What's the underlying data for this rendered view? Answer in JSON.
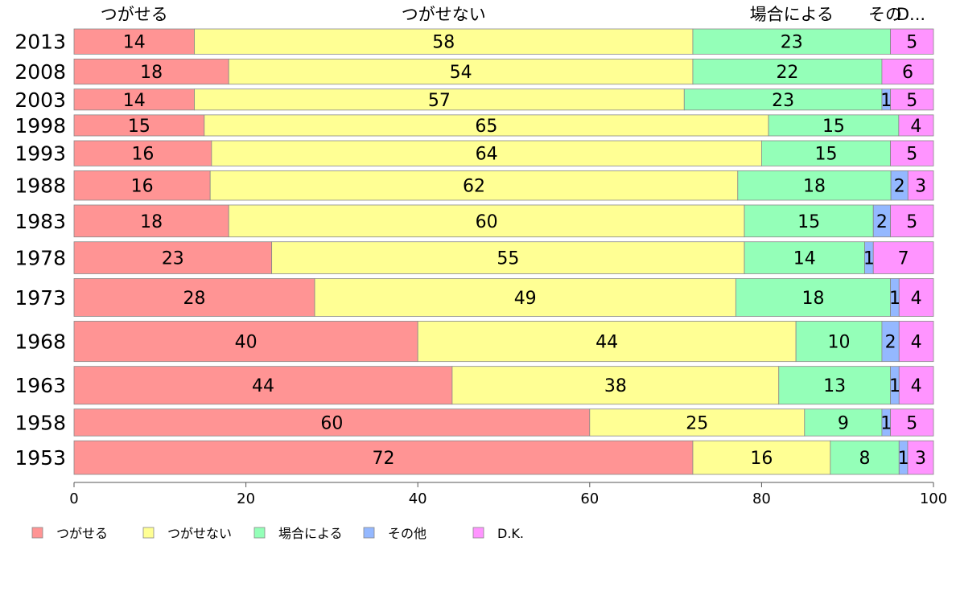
{
  "chart_data": {
    "type": "bar",
    "orientation": "horizontal",
    "stacked": true,
    "categories": [
      "2013",
      "2008",
      "2003",
      "1998",
      "1993",
      "1988",
      "1983",
      "1978",
      "1973",
      "1968",
      "1963",
      "1958",
      "1953"
    ],
    "category_weights": [
      30,
      30,
      25,
      25,
      30,
      35,
      38,
      38,
      45,
      48,
      45,
      32,
      40
    ],
    "series": [
      {
        "name": "つがせる",
        "color": "#ff9494",
        "values": [
          14,
          18,
          14,
          15,
          16,
          16,
          18,
          23,
          28,
          40,
          44,
          60,
          72
        ]
      },
      {
        "name": "つがせない",
        "color": "#ffff94",
        "values": [
          58,
          54,
          57,
          65,
          64,
          62,
          60,
          55,
          49,
          44,
          38,
          25,
          16
        ]
      },
      {
        "name": "場合による",
        "color": "#94ffb8",
        "values": [
          23,
          22,
          23,
          15,
          15,
          18,
          15,
          14,
          18,
          10,
          13,
          9,
          8
        ]
      },
      {
        "name": "その他",
        "color": "#94b8ff",
        "values": [
          0,
          0,
          1,
          0,
          0,
          2,
          2,
          1,
          1,
          2,
          1,
          1,
          1
        ]
      },
      {
        "name": "D.K.",
        "color": "#ff94ff",
        "values": [
          5,
          6,
          5,
          4,
          5,
          3,
          5,
          7,
          4,
          4,
          4,
          5,
          3
        ]
      }
    ],
    "data_labels": [
      [
        "14",
        "18",
        "14",
        "15",
        "16",
        "16",
        "18",
        "23",
        "28",
        "40",
        "44",
        "60",
        "72"
      ],
      [
        "58",
        "54",
        "57",
        "65",
        "64",
        "62",
        "60",
        "55",
        "49",
        "44",
        "38",
        "25",
        "16"
      ],
      [
        "23",
        "22",
        "23",
        "15",
        "15",
        "18",
        "15",
        "14",
        "18",
        "10",
        "13",
        "9",
        "8"
      ],
      [
        "",
        "",
        "1",
        "",
        "",
        "2",
        "2",
        "1",
        "1",
        "2",
        "1",
        "1",
        "1"
      ],
      [
        "5",
        "6",
        "5",
        "4",
        "5",
        "3",
        "5",
        "7",
        "4",
        "4",
        "4",
        "5",
        "3"
      ]
    ],
    "top_labels": [
      "つがせる",
      "つがせない",
      "場合による",
      "その他",
      "D.K."
    ],
    "top_labels_display": [
      "つがせる",
      "つがせない",
      "場合による",
      "その",
      "D..."
    ],
    "xlim": [
      0,
      100
    ],
    "xticks": [
      "0",
      "20",
      "40",
      "60",
      "80",
      "100"
    ],
    "grid": false,
    "legend_position": "bottom"
  }
}
